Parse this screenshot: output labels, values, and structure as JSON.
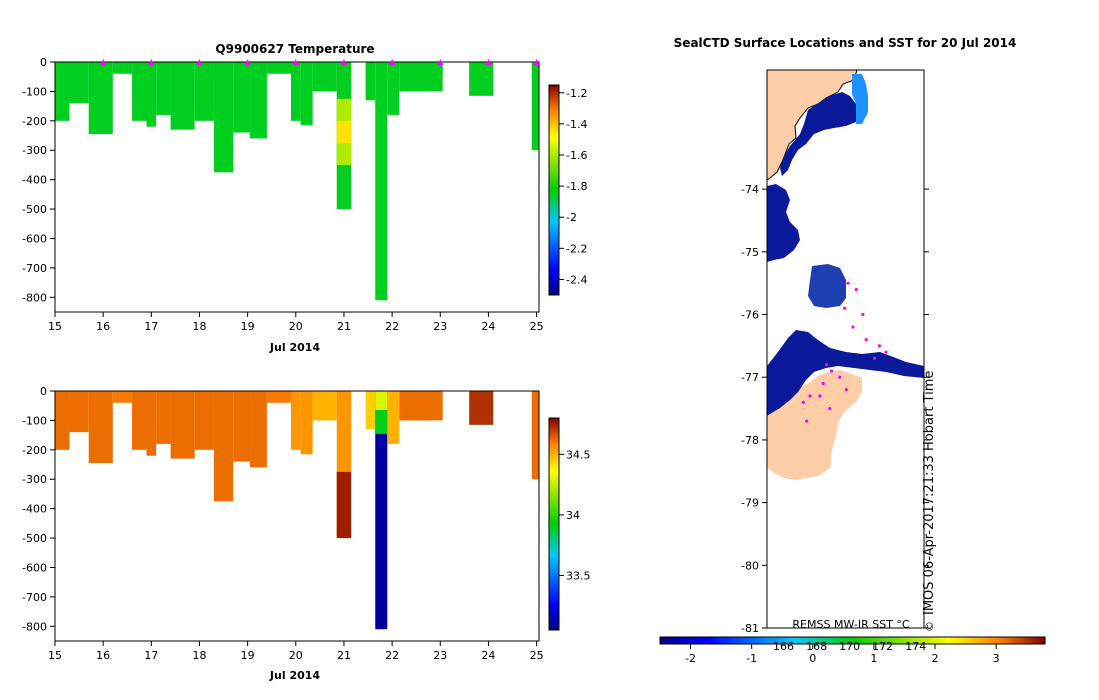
{
  "chart_data": [
    {
      "type": "heatmap",
      "title": "Q9900627  Temperature",
      "xlabel": "Jul 2014",
      "ylabel": "",
      "xlim": [
        15,
        25.05
      ],
      "ylim": [
        -850,
        0
      ],
      "xticks": [
        "15",
        "16",
        "17",
        "18",
        "19",
        "20",
        "21",
        "22",
        "23",
        "24",
        "25"
      ],
      "yticks": [
        "0",
        "-100",
        "-200",
        "-300",
        "-400",
        "-500",
        "-600",
        "-700",
        "-800"
      ],
      "colorbar": {
        "min": -2.5,
        "max": -1.15,
        "ticks": [
          "-1.2",
          "-1.4",
          "-1.6",
          "-1.8",
          "-2",
          "-2.2",
          "-2.4"
        ]
      },
      "surface_markers": [
        16,
        17,
        18,
        19,
        20,
        21,
        22,
        23,
        24,
        25
      ],
      "profiles": [
        {
          "x0": 15.0,
          "x1": 15.3,
          "depth": 200,
          "value": -1.85
        },
        {
          "x0": 15.3,
          "x1": 15.7,
          "depth": 140,
          "value": -1.85
        },
        {
          "x0": 15.7,
          "x1": 16.2,
          "depth": 245,
          "value": -1.85
        },
        {
          "x0": 16.2,
          "x1": 16.6,
          "depth": 40,
          "value": -1.85
        },
        {
          "x0": 16.6,
          "x1": 16.9,
          "depth": 200,
          "value": -1.85
        },
        {
          "x0": 16.9,
          "x1": 17.1,
          "depth": 220,
          "value": -1.85
        },
        {
          "x0": 17.1,
          "x1": 17.4,
          "depth": 180,
          "value": -1.85
        },
        {
          "x0": 17.4,
          "x1": 17.9,
          "depth": 230,
          "value": -1.85
        },
        {
          "x0": 17.9,
          "x1": 18.3,
          "depth": 200,
          "value": -1.85
        },
        {
          "x0": 18.3,
          "x1": 18.7,
          "depth": 375,
          "value": -1.85
        },
        {
          "x0": 18.7,
          "x1": 19.05,
          "depth": 240,
          "value": -1.85
        },
        {
          "x0": 19.05,
          "x1": 19.4,
          "depth": 260,
          "value": -1.85
        },
        {
          "x0": 19.4,
          "x1": 19.9,
          "depth": 40,
          "value": -1.85
        },
        {
          "x0": 19.9,
          "x1": 20.1,
          "depth": 200,
          "value": -1.85
        },
        {
          "x0": 20.1,
          "x1": 20.35,
          "depth": 215,
          "value": -1.85
        },
        {
          "x0": 20.35,
          "x1": 20.85,
          "depth": 100,
          "value": -1.85
        },
        {
          "x0": 20.85,
          "x1": 21.15,
          "depth": 500,
          "value": -1.85
        },
        {
          "x0": 21.45,
          "x1": 21.65,
          "depth": 130,
          "value": -1.85
        },
        {
          "x0": 21.65,
          "x1": 21.9,
          "depth": 810,
          "value": -1.85
        },
        {
          "x0": 21.9,
          "x1": 22.15,
          "depth": 180,
          "value": -1.85
        },
        {
          "x0": 22.15,
          "x1": 23.05,
          "depth": 100,
          "value": -1.85
        },
        {
          "x0": 23.6,
          "x1": 24.1,
          "depth": 115,
          "value": -1.85
        },
        {
          "x0": 24.9,
          "x1": 25.05,
          "depth": 300,
          "value": -1.85
        }
      ]
    },
    {
      "type": "heatmap",
      "title": "",
      "xlabel": "Jul 2014",
      "ylabel": "",
      "xlim": [
        15,
        25.05
      ],
      "ylim": [
        -850,
        0
      ],
      "xticks": [
        "15",
        "16",
        "17",
        "18",
        "19",
        "20",
        "21",
        "22",
        "23",
        "24",
        "25"
      ],
      "yticks": [
        "0",
        "-100",
        "-200",
        "-300",
        "-400",
        "-500",
        "-600",
        "-700",
        "-800"
      ],
      "colorbar": {
        "min": 33.05,
        "max": 34.8,
        "ticks": [
          "34.5",
          "34",
          "33.5"
        ]
      },
      "profiles": [
        {
          "x0": 15.0,
          "x1": 15.3,
          "depth": 200,
          "value": 34.62
        },
        {
          "x0": 15.3,
          "x1": 15.7,
          "depth": 140,
          "value": 34.62
        },
        {
          "x0": 15.7,
          "x1": 16.2,
          "depth": 245,
          "value": 34.62
        },
        {
          "x0": 16.2,
          "x1": 16.6,
          "depth": 40,
          "value": 34.6
        },
        {
          "x0": 16.6,
          "x1": 16.9,
          "depth": 200,
          "value": 34.62
        },
        {
          "x0": 16.9,
          "x1": 17.1,
          "depth": 220,
          "value": 34.62
        },
        {
          "x0": 17.1,
          "x1": 17.4,
          "depth": 180,
          "value": 34.62
        },
        {
          "x0": 17.4,
          "x1": 17.9,
          "depth": 230,
          "value": 34.62
        },
        {
          "x0": 17.9,
          "x1": 18.3,
          "depth": 200,
          "value": 34.62
        },
        {
          "x0": 18.3,
          "x1": 18.7,
          "depth": 375,
          "value": 34.62
        },
        {
          "x0": 18.7,
          "x1": 19.05,
          "depth": 240,
          "value": 34.62
        },
        {
          "x0": 19.05,
          "x1": 19.4,
          "depth": 260,
          "value": 34.62
        },
        {
          "x0": 19.4,
          "x1": 19.9,
          "depth": 40,
          "value": 34.6
        },
        {
          "x0": 19.9,
          "x1": 20.1,
          "depth": 200,
          "value": 34.55
        },
        {
          "x0": 20.1,
          "x1": 20.35,
          "depth": 215,
          "value": 34.55
        },
        {
          "x0": 20.35,
          "x1": 20.85,
          "depth": 100,
          "value": 34.5
        },
        {
          "x0": 20.85,
          "x1": 21.15,
          "depth": 500,
          "value": 34.55
        },
        {
          "x0": 21.45,
          "x1": 21.65,
          "depth": 130,
          "value": 34.45
        },
        {
          "x0": 21.65,
          "x1": 21.9,
          "depth": 810,
          "value": 33.1
        },
        {
          "x0": 21.9,
          "x1": 22.15,
          "depth": 180,
          "value": 34.5
        },
        {
          "x0": 22.15,
          "x1": 23.05,
          "depth": 100,
          "value": 34.62
        },
        {
          "x0": 23.6,
          "x1": 24.1,
          "depth": 115,
          "value": 34.72
        },
        {
          "x0": 24.9,
          "x1": 25.05,
          "depth": 300,
          "value": 34.62
        }
      ]
    },
    {
      "type": "map",
      "title": "SealCTD Surface Locations and SST for 20 Jul 2014",
      "yticks": [
        "-74",
        "-75",
        "-76",
        "-77",
        "-78",
        "-79",
        "-80",
        "-81"
      ],
      "ylim": [
        -81,
        -72.1
      ],
      "side_label": "IMOS 06-Apr-2017:21:33 Hobart Time",
      "copyright_symbol": "©",
      "colorbar": {
        "label": "REMSS MW-IR SST °C",
        "min": -2.5,
        "max": 3.8,
        "ticks": [
          "-2",
          "-1",
          "0",
          "1",
          "2",
          "3"
        ],
        "sub_ticks": [
          "166",
          "168",
          "170",
          "172",
          "174"
        ]
      },
      "locations": [
        {
          "lat": -75.5,
          "lon": 169.9
        },
        {
          "lat": -75.6,
          "lon": 170.4
        },
        {
          "lat": -75.9,
          "lon": 169.7
        },
        {
          "lat": -76.0,
          "lon": 170.8
        },
        {
          "lat": -76.2,
          "lon": 170.2
        },
        {
          "lat": -76.4,
          "lon": 171.0
        },
        {
          "lat": -76.5,
          "lon": 171.8
        },
        {
          "lat": -76.6,
          "lon": 172.2
        },
        {
          "lat": -76.7,
          "lon": 171.5
        },
        {
          "lat": -76.8,
          "lon": 168.6
        },
        {
          "lat": -76.9,
          "lon": 168.9
        },
        {
          "lat": -77.0,
          "lon": 169.4
        },
        {
          "lat": -77.1,
          "lon": 168.4
        },
        {
          "lat": -77.2,
          "lon": 169.8
        },
        {
          "lat": -77.3,
          "lon": 167.6
        },
        {
          "lat": -77.3,
          "lon": 168.2
        },
        {
          "lat": -77.4,
          "lon": 167.2
        },
        {
          "lat": -77.5,
          "lon": 168.8
        },
        {
          "lat": -77.7,
          "lon": 167.4
        }
      ]
    }
  ]
}
